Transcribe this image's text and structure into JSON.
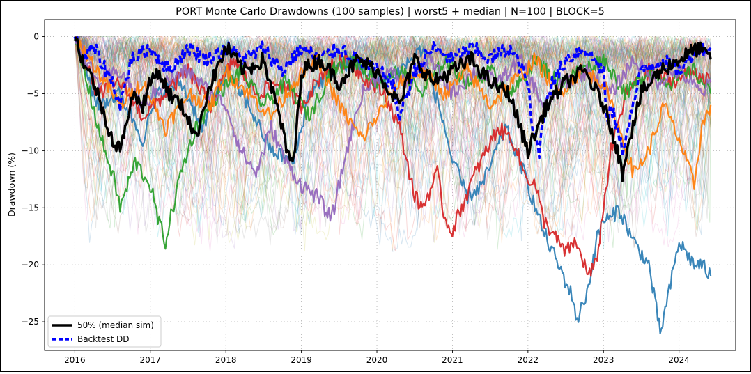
{
  "chart_data": {
    "type": "line",
    "title": "PORT Monte Carlo Drawdowns (100 samples) | worst5 + median | N=100 | BLOCK=5",
    "xlabel": "",
    "ylabel": "Drawdown (%)",
    "xlim": [
      2015.6,
      2024.75
    ],
    "ylim": [
      -27.5,
      1.5
    ],
    "grid": true,
    "legend_position": "lower-left",
    "x_ticks": [
      2016,
      2017,
      2018,
      2019,
      2020,
      2021,
      2022,
      2023,
      2024
    ],
    "x_tick_labels": [
      "2016",
      "2017",
      "2018",
      "2019",
      "2020",
      "2021",
      "2022",
      "2023",
      "2024"
    ],
    "y_ticks": [
      0,
      -5,
      -10,
      -15,
      -20,
      -25
    ],
    "y_tick_labels": [
      "0",
      "−5",
      "−10",
      "−15",
      "−20",
      "−25"
    ],
    "background_sample_count": 100,
    "series": [
      {
        "label": "worst sample (blue)",
        "color": "#2f7fb5",
        "width": 2.2,
        "style": "solid",
        "opacity": 0.95,
        "x": [
          2016.0,
          2016.3,
          2016.6,
          2016.9,
          2017.1,
          2017.4,
          2017.7,
          2018.0,
          2018.3,
          2018.6,
          2018.9,
          2019.1,
          2019.4,
          2019.7,
          2020.0,
          2020.3,
          2020.6,
          2020.9,
          2021.0,
          2021.2,
          2021.4,
          2021.7,
          2021.9,
          2022.0,
          2022.2,
          2022.4,
          2022.6,
          2022.65,
          2022.8,
          2022.9,
          2023.0,
          2023.1,
          2023.2,
          2023.4,
          2023.6,
          2023.7,
          2023.75,
          2023.85,
          2024.0,
          2024.1,
          2024.2,
          2024.3,
          2024.42
        ],
        "y": [
          0,
          -6,
          -5,
          -9,
          -5,
          -4,
          -8,
          -3,
          -6,
          -10,
          -11,
          -5,
          -3,
          -2,
          -4,
          -3,
          -1,
          -8,
          -11,
          -14,
          -13,
          -8,
          -11,
          -13,
          -17,
          -20,
          -23,
          -25,
          -22,
          -18,
          -16,
          -16,
          -15,
          -18,
          -20,
          -24,
          -26,
          -23,
          -18,
          -19,
          -20,
          -20,
          -21
        ]
      },
      {
        "label": "worst sample (red)",
        "color": "#d62728",
        "width": 2.2,
        "style": "solid",
        "opacity": 0.95,
        "x": [
          2016.0,
          2016.3,
          2016.6,
          2016.9,
          2017.2,
          2017.5,
          2017.8,
          2018.1,
          2018.4,
          2018.7,
          2019.0,
          2019.3,
          2019.6,
          2019.9,
          2020.1,
          2020.3,
          2020.5,
          2020.6,
          2020.8,
          2020.9,
          2021.0,
          2021.3,
          2021.6,
          2021.8,
          2021.95,
          2022.1,
          2022.2,
          2022.3,
          2022.4,
          2022.5,
          2022.6,
          2022.7,
          2022.8,
          2022.9,
          2023.0,
          2023.1,
          2023.3,
          2023.6,
          2023.9,
          2024.2,
          2024.42
        ],
        "y": [
          0,
          -5,
          -4,
          -7,
          -5,
          -3,
          -6,
          -2,
          -5,
          -4,
          -6,
          -3,
          -2,
          -4,
          -5,
          -8,
          -14,
          -15,
          -12,
          -16,
          -17,
          -12,
          -8,
          -9,
          -12,
          -13,
          -16,
          -17,
          -18,
          -19,
          -18,
          -19,
          -21,
          -20,
          -15,
          -10,
          -5,
          -3,
          -4,
          -3,
          -4
        ]
      },
      {
        "label": "worst sample (green)",
        "color": "#2ca02c",
        "width": 2.2,
        "style": "solid",
        "opacity": 0.95,
        "x": [
          2016.0,
          2016.2,
          2016.35,
          2016.5,
          2016.6,
          2016.8,
          2017.0,
          2017.1,
          2017.2,
          2017.4,
          2017.6,
          2017.9,
          2018.2,
          2018.5,
          2018.8,
          2019.1,
          2019.4,
          2019.7,
          2020.0,
          2020.3,
          2020.6,
          2020.9,
          2021.2,
          2021.5,
          2021.8,
          2022.1,
          2022.4,
          2022.7,
          2023.0,
          2023.3,
          2023.6,
          2023.9,
          2024.2,
          2024.42
        ],
        "y": [
          0,
          -5,
          -9,
          -12,
          -15,
          -11,
          -13,
          -16,
          -18,
          -12,
          -8,
          -5,
          -3,
          -6,
          -4,
          -7,
          -3,
          -2,
          -4,
          -3,
          -5,
          -2,
          -4,
          -3,
          -5,
          -2,
          -4,
          -3,
          -2,
          -5,
          -3,
          -4,
          -3,
          -5
        ]
      },
      {
        "label": "worst sample (purple)",
        "color": "#9467bd",
        "width": 2.2,
        "style": "solid",
        "opacity": 0.95,
        "x": [
          2016.0,
          2016.3,
          2016.6,
          2016.9,
          2017.2,
          2017.5,
          2017.8,
          2018.0,
          2018.2,
          2018.4,
          2018.6,
          2018.8,
          2019.0,
          2019.2,
          2019.4,
          2019.6,
          2019.8,
          2020.1,
          2020.4,
          2020.7,
          2021.0,
          2021.3,
          2021.6,
          2021.9,
          2022.2,
          2022.5,
          2022.8,
          2023.1,
          2023.4,
          2023.7,
          2024.0,
          2024.3,
          2024.42
        ],
        "y": [
          0,
          -4,
          -3,
          -6,
          -4,
          -3,
          -5,
          -6,
          -10,
          -12,
          -8,
          -11,
          -13,
          -14,
          -16,
          -10,
          -5,
          -3,
          -4,
          -2,
          -5,
          -3,
          -4,
          -2,
          -6,
          -4,
          -3,
          -5,
          -2,
          -4,
          -3,
          -5,
          -4
        ]
      },
      {
        "label": "worst sample (orange)",
        "color": "#ff7f0e",
        "width": 2.2,
        "style": "solid",
        "opacity": 0.95,
        "x": [
          2016.0,
          2016.3,
          2016.6,
          2016.9,
          2017.2,
          2017.5,
          2017.8,
          2018.0,
          2018.3,
          2018.6,
          2018.9,
          2019.2,
          2019.5,
          2019.8,
          2020.0,
          2020.3,
          2020.6,
          2020.9,
          2021.2,
          2021.5,
          2021.8,
          2022.1,
          2022.4,
          2022.7,
          2023.0,
          2023.2,
          2023.4,
          2023.6,
          2023.8,
          2024.0,
          2024.1,
          2024.2,
          2024.3,
          2024.42
        ],
        "y": [
          0,
          -3,
          -6,
          -4,
          -8,
          -5,
          -6,
          -3,
          -5,
          -7,
          -4,
          -2,
          -6,
          -9,
          -7,
          -4,
          -3,
          -5,
          -3,
          -6,
          -4,
          -2,
          -5,
          -3,
          -4,
          -8,
          -12,
          -10,
          -6,
          -9,
          -11,
          -13,
          -8,
          -6
        ]
      },
      {
        "label": "Backtest DD",
        "color": "#0000ff",
        "width": 3.5,
        "style": "dashed",
        "opacity": 1,
        "x": [
          2016.0,
          2016.1,
          2016.25,
          2016.5,
          2016.6,
          2016.75,
          2017.0,
          2017.25,
          2017.5,
          2017.75,
          2018.0,
          2018.25,
          2018.5,
          2018.75,
          2019.0,
          2019.25,
          2019.5,
          2019.75,
          2020.0,
          2020.2,
          2020.3,
          2020.5,
          2020.75,
          2021.0,
          2021.25,
          2021.5,
          2021.75,
          2021.85,
          2022.0,
          2022.05,
          2022.15,
          2022.25,
          2022.5,
          2022.75,
          2023.0,
          2023.05,
          2023.1,
          2023.25,
          2023.5,
          2023.75,
          2024.0,
          2024.25,
          2024.42
        ],
        "y": [
          0,
          -2,
          -1,
          -4,
          -6,
          -2,
          -1,
          -3,
          -1,
          -2,
          -1,
          -2,
          -1,
          -3,
          -1,
          -2,
          -1,
          -2,
          -3,
          -4,
          -7,
          -3,
          -1,
          -2,
          -1,
          -2,
          -1,
          -2,
          -4,
          -8,
          -10,
          -5,
          -2,
          -1,
          -3,
          -8,
          -6,
          -10,
          -3,
          -2,
          -3,
          -1,
          -1
        ]
      },
      {
        "label": "50% (median sim)",
        "color": "#000000",
        "width": 3.5,
        "style": "solid",
        "opacity": 1,
        "x": [
          2016.0,
          2016.1,
          2016.25,
          2016.45,
          2016.55,
          2016.65,
          2016.75,
          2016.9,
          2017.0,
          2017.1,
          2017.25,
          2017.4,
          2017.5,
          2017.6,
          2017.75,
          2018.0,
          2018.25,
          2018.5,
          2018.75,
          2018.8,
          2018.9,
          2019.0,
          2019.25,
          2019.5,
          2019.75,
          2020.0,
          2020.3,
          2020.5,
          2020.75,
          2021.0,
          2021.25,
          2021.5,
          2021.75,
          2022.0,
          2022.25,
          2022.5,
          2022.75,
          2023.0,
          2023.15,
          2023.25,
          2023.3,
          2023.5,
          2023.75,
          2024.0,
          2024.25,
          2024.42
        ],
        "y": [
          0,
          -2,
          -4,
          -8,
          -10,
          -9,
          -5,
          -6,
          -4,
          -3,
          -5,
          -6,
          -7,
          -9,
          -5,
          -1,
          -3,
          -2,
          -8,
          -10,
          -11,
          -3,
          -2,
          -4,
          -2,
          -3,
          -6,
          -2,
          -4,
          -3,
          -2,
          -4,
          -5,
          -10,
          -6,
          -4,
          -3,
          -6,
          -9,
          -12,
          -10,
          -5,
          -3,
          -2,
          -1,
          -2
        ]
      }
    ],
    "legend": [
      {
        "label": "50% (median sim)",
        "color": "#000000",
        "style": "solid"
      },
      {
        "label": "Backtest DD",
        "color": "#0000ff",
        "style": "dashed"
      }
    ]
  }
}
